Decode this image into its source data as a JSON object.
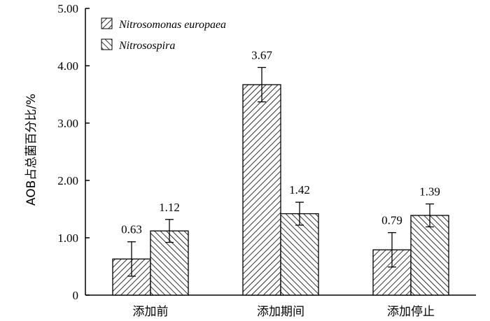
{
  "chart_data": {
    "type": "bar",
    "categories": [
      "添加前",
      "添加期间",
      "添加停止"
    ],
    "series": [
      {
        "name": "Nitrosomonas europaea",
        "values": [
          0.63,
          3.67,
          0.79
        ],
        "errors": [
          0.3,
          0.3,
          0.3
        ],
        "pattern": "hatch-forward"
      },
      {
        "name": "Nitrosospira",
        "values": [
          1.12,
          1.42,
          1.39
        ],
        "errors": [
          0.2,
          0.2,
          0.2
        ],
        "pattern": "hatch-backward"
      }
    ],
    "data_labels": [
      [
        "0.63",
        "3.67",
        "0.79"
      ],
      [
        "1.12",
        "1.42",
        "1.39"
      ]
    ],
    "ylabel": "AOB占总菌百分比/%",
    "xlabel": "",
    "ylim": [
      0,
      5
    ],
    "yticks": [
      0,
      1,
      2,
      3,
      4,
      5
    ],
    "ytick_labels": [
      "0",
      "1.00",
      "2.00",
      "3.00",
      "4.00",
      "5.00"
    ],
    "grid": false,
    "legend_position": "top-left",
    "bar_stroke_color": "#000000",
    "hatch_color": "#000000"
  }
}
